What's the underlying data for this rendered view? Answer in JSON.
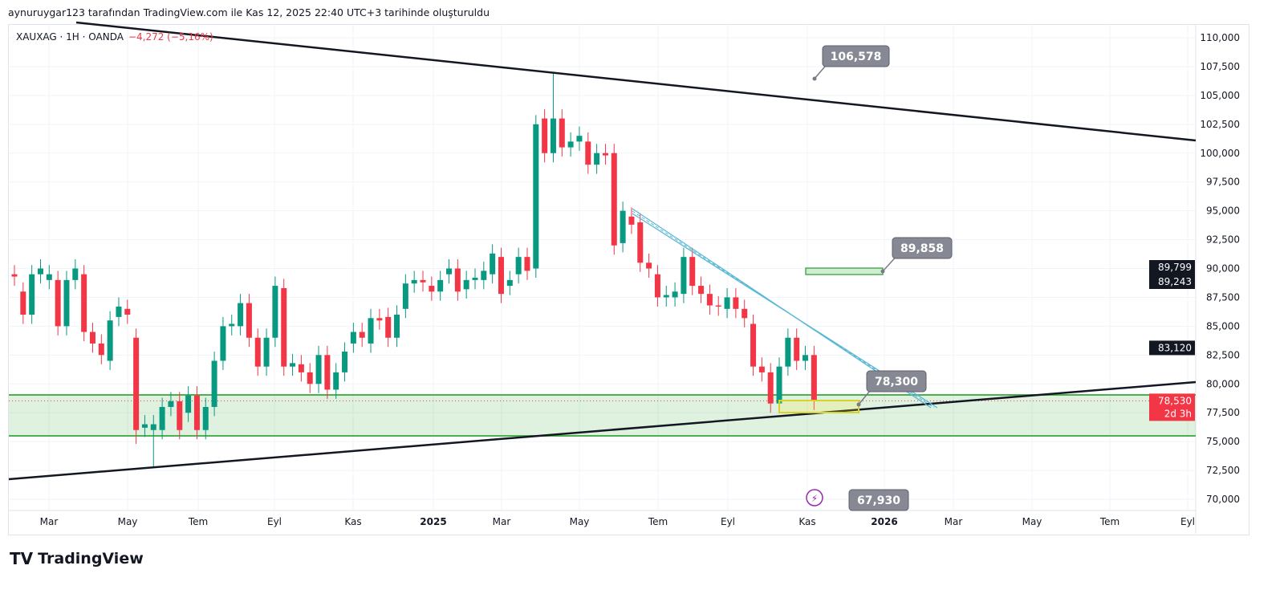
{
  "header": {
    "attribution": "aynuruygar123 tarafından TradingView.com ile Kas 12, 2025 22:40 UTC+3 tarihinde oluşturuldu"
  },
  "symbol": {
    "name": "XAUXAG · 1H · OANDA",
    "change": "−4,272 (−5,16%)"
  },
  "branding": {
    "logo_text": "TradingView"
  },
  "colors": {
    "up": "#089981",
    "down": "#f23645",
    "zone": "#4caf50",
    "channel": "#5bb8d4"
  },
  "chart_data": {
    "type": "candlestick",
    "title": "XAUXAG · 1H · OANDA",
    "ylim": [
      69000,
      111500
    ],
    "y_ticks": [
      "110,000",
      "107,500",
      "105,000",
      "102,500",
      "100,000",
      "97,500",
      "95,000",
      "92,500",
      "90,000",
      "87,500",
      "85,000",
      "82,500",
      "80,000",
      "77,500",
      "75,000",
      "72,500",
      "70,000"
    ],
    "x_ticks": [
      "Mar",
      "May",
      "Tem",
      "Eyl",
      "Kas",
      "2025",
      "Mar",
      "May",
      "Tem",
      "Eyl",
      "Kas",
      "2026",
      "Mar",
      "May",
      "Tem",
      "Eyl"
    ],
    "price_labels": [
      {
        "text": "89,799",
        "type": "dark"
      },
      {
        "text": "89,243",
        "type": "dark"
      },
      {
        "text": "83,120",
        "type": "dark"
      },
      {
        "text": "78,530",
        "sub": "2d 3h",
        "type": "red"
      }
    ],
    "annotations": [
      "106,578",
      "89,858",
      "78,300",
      "67,930"
    ],
    "candles_oc": [
      [
        89.5,
        89.3
      ],
      [
        88,
        86
      ],
      [
        86,
        89.5
      ],
      [
        89.5,
        90
      ],
      [
        89,
        89.5
      ],
      [
        89,
        85
      ],
      [
        85,
        89
      ],
      [
        89,
        90
      ],
      [
        89.5,
        84.5
      ],
      [
        84.5,
        83.5
      ],
      [
        83.5,
        82.5
      ],
      [
        82,
        85.5
      ],
      [
        85.8,
        86.7
      ],
      [
        86.5,
        86
      ],
      [
        84,
        76
      ],
      [
        76.2,
        76.5
      ],
      [
        76,
        76.5
      ],
      [
        76,
        78
      ],
      [
        78,
        78.5
      ],
      [
        78.5,
        76
      ],
      [
        77.5,
        79
      ],
      [
        79,
        76
      ],
      [
        76,
        78
      ],
      [
        78,
        82
      ],
      [
        82,
        85
      ],
      [
        85,
        85.2
      ],
      [
        85,
        87
      ],
      [
        87,
        84
      ],
      [
        84,
        81.5
      ],
      [
        81.5,
        84
      ],
      [
        84,
        88.5
      ],
      [
        88.3,
        81.5
      ],
      [
        81.5,
        81.8
      ],
      [
        81.7,
        81
      ],
      [
        81,
        80
      ],
      [
        80,
        82.5
      ],
      [
        82.5,
        79.5
      ],
      [
        79.5,
        81
      ],
      [
        81,
        82.8
      ],
      [
        83.5,
        84.5
      ],
      [
        84.5,
        84
      ],
      [
        83.5,
        85.7
      ],
      [
        85.7,
        85.5
      ],
      [
        85.8,
        84
      ],
      [
        84,
        86
      ],
      [
        86.5,
        88.7
      ],
      [
        88.7,
        89
      ],
      [
        89,
        88.8
      ],
      [
        88.5,
        88
      ],
      [
        88,
        89
      ],
      [
        89.5,
        90
      ],
      [
        90,
        88
      ],
      [
        88.2,
        89
      ],
      [
        89,
        89.2
      ],
      [
        89,
        89.8
      ],
      [
        89.5,
        91.3
      ],
      [
        91,
        87.8
      ],
      [
        88.5,
        89
      ],
      [
        89.5,
        91
      ],
      [
        91,
        89.8
      ],
      [
        90,
        102.5
      ],
      [
        103,
        100
      ],
      [
        100,
        103
      ],
      [
        103,
        100.5
      ],
      [
        100.5,
        101
      ],
      [
        101,
        101.5
      ],
      [
        101,
        99
      ],
      [
        99,
        100
      ],
      [
        100,
        99.8
      ],
      [
        100,
        92
      ],
      [
        92.2,
        95
      ],
      [
        94.5,
        93.8
      ],
      [
        94,
        90.5
      ],
      [
        90.5,
        90
      ],
      [
        89.5,
        87.5
      ],
      [
        87.5,
        87.7
      ],
      [
        87.5,
        88
      ],
      [
        87.8,
        91
      ],
      [
        91,
        88.5
      ],
      [
        88.5,
        87.8
      ],
      [
        87.8,
        86.8
      ],
      [
        86.8,
        86.7
      ],
      [
        86.5,
        87.5
      ],
      [
        87.5,
        86.5
      ],
      [
        86.5,
        85.7
      ],
      [
        85.2,
        81.5
      ],
      [
        81.5,
        81
      ],
      [
        81,
        78.3
      ],
      [
        78.3,
        81.5
      ],
      [
        81.5,
        84
      ],
      [
        84,
        82
      ],
      [
        82,
        82.5
      ],
      [
        82.5,
        78.53
      ]
    ]
  }
}
